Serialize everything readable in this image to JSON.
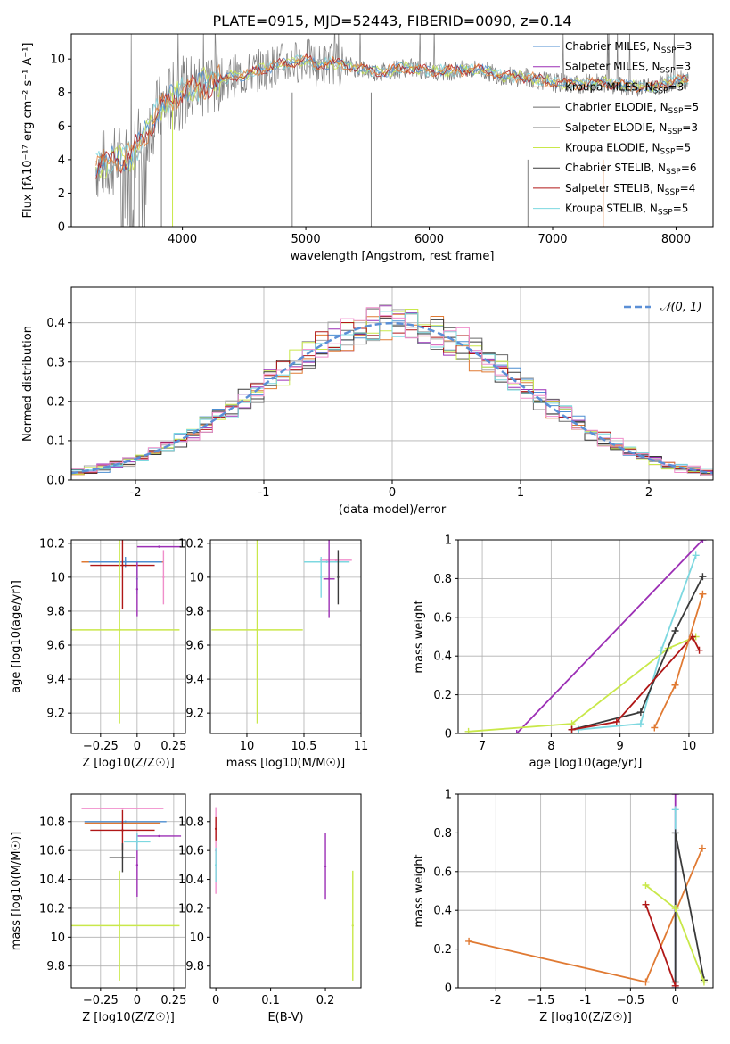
{
  "page": {
    "title": "PLATE=0915, MJD=52443, FIBERID=0090, z=0.14"
  },
  "colors": {
    "chabrier_miles": "#4c8ed1",
    "salpeter_miles": "#9c2fb5",
    "kroupa_miles": "#e07a33",
    "chabrier_elodie": "#6a6a6a",
    "salpeter_elodie": "#a8a8a8",
    "kroupa_elodie": "#c9e84a",
    "chabrier_stelib": "#3a3a3a",
    "salpeter_stelib": "#b01717",
    "kroupa_stelib": "#7dd8e0",
    "spectrum_data": "#7f7f7f",
    "gaussian": "#5b8fd6",
    "grid": "#b0b0b0",
    "pink": "#f08ecb",
    "olive": "#a8c23a"
  },
  "chart_data": [
    {
      "id": "spectrum",
      "type": "line",
      "title": "PLATE=0915, MJD=52443, FIBERID=0090, z=0.14",
      "xlabel": "wavelength [Angstrom, rest frame]",
      "ylabel": "Flux [fλ10⁻¹⁷ erg cm⁻² s⁻¹ A⁻¹]",
      "xlim": [
        3100,
        8300
      ],
      "ylim": [
        0,
        11.5
      ],
      "xticks": [
        4000,
        5000,
        6000,
        7000,
        8000
      ],
      "yticks": [
        0,
        2,
        4,
        6,
        8,
        10
      ],
      "grid": false,
      "legend_position": "upper-right",
      "legend": [
        "Chabrier MILES, N_SSP=3",
        "Salpeter MILES, N_SSP=3",
        "Kroupa MILES, N_SSP=3",
        "Chabrier ELODIE, N_SSP=5",
        "Salpeter ELODIE, N_SSP=3",
        "Kroupa ELODIE, N_SSP=5",
        "Chabrier STELIB, N_SSP=6",
        "Salpeter STELIB, N_SSP=4",
        "Kroupa STELIB, N_SSP=5"
      ],
      "continuum_x": [
        3300,
        3450,
        3600,
        3700,
        3800,
        3900,
        4000,
        4100,
        4200,
        4300,
        4400,
        4500,
        4600,
        4700,
        4800,
        4900,
        5000,
        5100,
        5200,
        5400,
        5600,
        5800,
        6000,
        6200,
        6400,
        6600,
        6800,
        7000,
        7200,
        7400,
        7600,
        7800,
        8000,
        8100
      ],
      "continuum_y": [
        3.6,
        3.9,
        4.3,
        5.6,
        6.8,
        7.6,
        8.0,
        8.3,
        8.6,
        8.7,
        9.0,
        9.0,
        9.3,
        9.5,
        9.7,
        9.8,
        10.0,
        9.6,
        9.8,
        9.5,
        9.2,
        9.5,
        9.3,
        9.3,
        9.4,
        9.0,
        8.9,
        8.6,
        8.5,
        8.6,
        8.4,
        8.3,
        8.7,
        8.8
      ]
    },
    {
      "id": "residuals",
      "type": "histogram",
      "xlabel": "(data-model)/error",
      "ylabel": "Normed distribution",
      "xlim": [
        -2.5,
        2.5
      ],
      "ylim": [
        0,
        0.49
      ],
      "xticks": [
        -2,
        -1,
        0,
        1,
        2
      ],
      "yticks": [
        0.0,
        0.1,
        0.2,
        0.3,
        0.4
      ],
      "grid": true,
      "legend": [
        "𝒩(0, 1)"
      ],
      "legend_position": "upper-right",
      "bin_width": 0.1,
      "series_note": "nine normalized histograms, one per model"
    },
    {
      "id": "age_vs_Z",
      "type": "scatter",
      "xlabel": "Z [log10(Z/Z☉)]",
      "ylabel": "age  [log10(age/yr)]",
      "xlim": [
        -0.45,
        0.33
      ],
      "ylim": [
        9.08,
        10.22
      ],
      "xticks": [
        -0.25,
        0.0,
        0.25
      ],
      "yticks": [
        9.2,
        9.4,
        9.6,
        9.8,
        10.0,
        10.2
      ],
      "grid": true,
      "points": [
        {
          "x": 0.15,
          "xerr": 0.15,
          "y": 10.18,
          "yerr": 0.0,
          "color": "salpeter_miles"
        },
        {
          "x": -0.1,
          "xerr": 0.28,
          "y": 10.09,
          "yerr": 0.0,
          "color": "kroupa_miles"
        },
        {
          "x": -0.08,
          "xerr": 0.25,
          "y": 10.09,
          "yerr": 0.03,
          "color": "chabrier_miles"
        },
        {
          "x": -0.1,
          "xerr": 0.22,
          "y": 10.07,
          "yerr": 0.26,
          "color": "salpeter_stelib"
        },
        {
          "x": 0.0,
          "xerr": 0.0,
          "y": 9.99,
          "yerr": 0.09,
          "color": "kroupa_stelib"
        },
        {
          "x": 0.0,
          "xerr": 0.0,
          "y": 9.93,
          "yerr": 0.16,
          "color": "salpeter_miles"
        },
        {
          "x": 0.18,
          "xerr": 0.0,
          "y": 10.0,
          "yerr": 0.16,
          "color": "pink"
        },
        {
          "x": -0.12,
          "xerr": 0.41,
          "y": 9.69,
          "yerr": 0.55,
          "color": "kroupa_elodie"
        }
      ]
    },
    {
      "id": "age_vs_mass",
      "type": "scatter",
      "xlabel": "mass [log10(M/M☉)]",
      "xlim": [
        9.68,
        11.0
      ],
      "ylim": [
        9.08,
        10.22
      ],
      "xticks": [
        10.0,
        10.5,
        11.0
      ],
      "yticks": [
        9.2,
        9.4,
        9.6,
        9.8,
        10.0,
        10.2
      ],
      "grid": true,
      "points": [
        {
          "x": 10.7,
          "xerr": 0.2,
          "y": 10.09,
          "yerr": 0.0,
          "color": "kroupa_stelib"
        },
        {
          "x": 10.78,
          "xerr": 0.14,
          "y": 10.1,
          "yerr": 0.0,
          "color": "pink"
        },
        {
          "x": 10.72,
          "xerr": 0.05,
          "y": 9.99,
          "yerr": 0.23,
          "color": "salpeter_miles"
        },
        {
          "x": 10.65,
          "xerr": 0.0,
          "y": 10.0,
          "yerr": 0.12,
          "color": "kroupa_stelib"
        },
        {
          "x": 10.09,
          "xerr": 0.4,
          "y": 9.69,
          "yerr": 0.55,
          "color": "kroupa_elodie"
        },
        {
          "x": 10.8,
          "xerr": 0.0,
          "y": 10.0,
          "yerr": 0.16,
          "color": "chabrier_stelib"
        }
      ]
    },
    {
      "id": "massweight_vs_age",
      "type": "line",
      "xlabel": "age  [log10(age/yr)]",
      "ylabel": "mass weight",
      "xlim": [
        6.65,
        10.35
      ],
      "ylim": [
        0,
        1.0
      ],
      "xticks": [
        7,
        8,
        9,
        10
      ],
      "yticks": [
        0.0,
        0.2,
        0.4,
        0.6,
        0.8,
        1.0
      ],
      "grid": true,
      "series": [
        {
          "color": "salpeter_miles",
          "x": [
            7.5,
            10.2
          ],
          "y": [
            0.0,
            1.0
          ]
        },
        {
          "color": "kroupa_elodie",
          "x": [
            6.8,
            8.3,
            9.7,
            10.1
          ],
          "y": [
            0.01,
            0.05,
            0.44,
            0.5
          ]
        },
        {
          "color": "kroupa_stelib",
          "x": [
            8.4,
            9.3,
            9.6,
            10.1
          ],
          "y": [
            0.02,
            0.05,
            0.43,
            0.92
          ]
        },
        {
          "color": "chabrier_stelib",
          "x": [
            8.3,
            9.3,
            9.8,
            10.2
          ],
          "y": [
            0.02,
            0.11,
            0.53,
            0.81
          ]
        },
        {
          "color": "salpeter_stelib",
          "x": [
            8.3,
            8.95,
            10.05,
            10.15
          ],
          "y": [
            0.02,
            0.06,
            0.5,
            0.43
          ]
        },
        {
          "color": "kroupa_miles",
          "x": [
            9.5,
            9.8,
            10.2
          ],
          "y": [
            0.03,
            0.25,
            0.72
          ]
        }
      ]
    },
    {
      "id": "mass_vs_Z",
      "type": "scatter",
      "xlabel": "Z [log10(Z/Z☉)]",
      "ylabel": "mass [log10(M/M☉)]",
      "xlim": [
        -0.45,
        0.33
      ],
      "ylim": [
        9.65,
        10.99
      ],
      "xticks": [
        -0.25,
        0.0,
        0.25
      ],
      "yticks": [
        9.8,
        10.0,
        10.2,
        10.4,
        10.6,
        10.8
      ],
      "grid": true,
      "points": [
        {
          "x": -0.1,
          "xerr": 0.28,
          "y": 10.89,
          "yerr": 0.0,
          "color": "pink"
        },
        {
          "x": -0.08,
          "xerr": 0.28,
          "y": 10.8,
          "yerr": 0.0,
          "color": "chabrier_miles"
        },
        {
          "x": -0.1,
          "xerr": 0.26,
          "y": 10.79,
          "yerr": 0.0,
          "color": "kroupa_miles"
        },
        {
          "x": -0.1,
          "xerr": 0.22,
          "y": 10.74,
          "yerr": 0.14,
          "color": "salpeter_stelib"
        },
        {
          "x": 0.15,
          "xerr": 0.15,
          "y": 10.7,
          "yerr": 0.0,
          "color": "salpeter_miles"
        },
        {
          "x": 0.0,
          "xerr": 0.0,
          "y": 10.5,
          "yerr": 0.22,
          "color": "salpeter_miles"
        },
        {
          "x": 0.0,
          "xerr": 0.09,
          "y": 10.66,
          "yerr": 0.06,
          "color": "kroupa_stelib"
        },
        {
          "x": -0.1,
          "xerr": 0.09,
          "y": 10.55,
          "yerr": 0.1,
          "color": "chabrier_stelib"
        },
        {
          "x": -0.12,
          "xerr": 0.41,
          "y": 10.08,
          "yerr": 0.38,
          "color": "kroupa_elodie"
        }
      ]
    },
    {
      "id": "mass_vs_ebv",
      "type": "scatter",
      "xlabel": "E(B-V)",
      "xlim": [
        -0.01,
        0.265
      ],
      "ylim": [
        9.65,
        10.99
      ],
      "xticks": [
        0.0,
        0.1,
        0.2
      ],
      "yticks": [
        9.8,
        10.0,
        10.2,
        10.4,
        10.6,
        10.8
      ],
      "grid": false,
      "points": [
        {
          "x": 0.0,
          "y": 10.6,
          "yerr": 0.3,
          "color": "pink"
        },
        {
          "x": 0.0,
          "y": 10.75,
          "yerr": 0.08,
          "color": "salpeter_stelib"
        },
        {
          "x": 0.0,
          "y": 10.5,
          "yerr": 0.12,
          "color": "kroupa_stelib"
        },
        {
          "x": 0.2,
          "y": 10.49,
          "yerr": 0.23,
          "color": "salpeter_miles"
        },
        {
          "x": 0.25,
          "y": 10.08,
          "yerr": 0.38,
          "color": "kroupa_elodie"
        }
      ]
    },
    {
      "id": "massweight_vs_Z",
      "type": "line",
      "xlabel": "Z [log10(Z/Z☉)]",
      "ylabel": "mass weight",
      "xlim": [
        -2.42,
        0.42
      ],
      "ylim": [
        0,
        1.0
      ],
      "xticks": [
        -2.0,
        -1.5,
        -1.0,
        -0.5,
        0.0
      ],
      "yticks": [
        0.0,
        0.2,
        0.4,
        0.6,
        0.8,
        1.0
      ],
      "grid": true,
      "series": [
        {
          "color": "kroupa_miles",
          "x": [
            -2.3,
            -0.33,
            0.3
          ],
          "y": [
            0.24,
            0.03,
            0.72
          ]
        },
        {
          "color": "salpeter_miles",
          "x": [
            0.0,
            0.0
          ],
          "y": [
            0.0,
            1.0
          ]
        },
        {
          "color": "kroupa_stelib",
          "x": [
            0.0,
            0.0
          ],
          "y": [
            0.0,
            0.92
          ]
        },
        {
          "color": "chabrier_stelib",
          "x": [
            0.0,
            0.0,
            0.32
          ],
          "y": [
            0.03,
            0.8,
            0.04
          ]
        },
        {
          "color": "kroupa_elodie",
          "x": [
            -0.33,
            0.0,
            0.32
          ],
          "y": [
            0.53,
            0.41,
            0.03
          ]
        },
        {
          "color": "salpeter_stelib",
          "x": [
            -0.33,
            0.0
          ],
          "y": [
            0.43,
            0.01
          ]
        }
      ]
    }
  ]
}
